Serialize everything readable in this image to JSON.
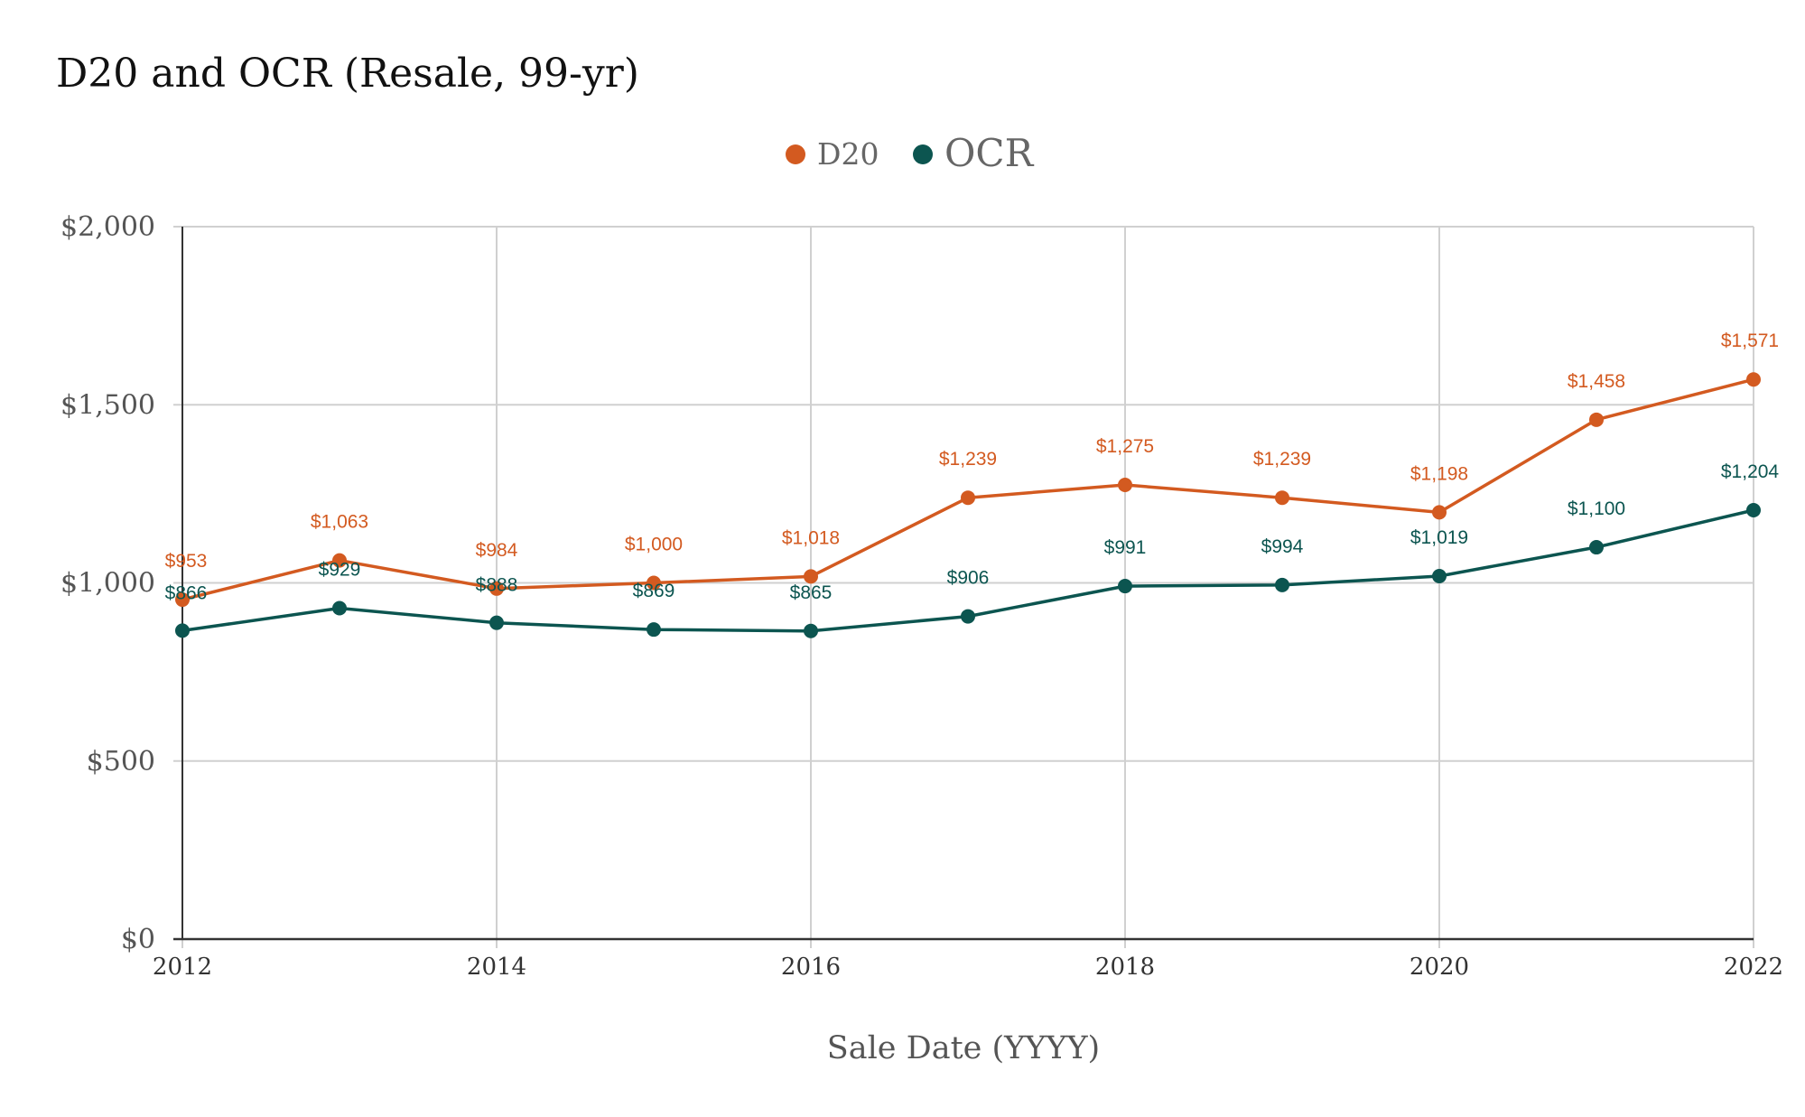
{
  "chart_data": {
    "type": "line",
    "title": "D20 and OCR (Resale, 99-yr)",
    "xlabel": "Sale Date (YYYY)",
    "ylabel": "",
    "x": [
      2012,
      2013,
      2014,
      2015,
      2016,
      2017,
      2018,
      2019,
      2020,
      2021,
      2022
    ],
    "x_tick_labels": [
      "2012",
      "2014",
      "2016",
      "2018",
      "2020",
      "2022"
    ],
    "y_tick_labels": [
      "$0",
      "$500",
      "$1,000",
      "$1,500",
      "$2,000"
    ],
    "ylim": [
      0,
      2000
    ],
    "grid": true,
    "legend_position": "top-center",
    "series": [
      {
        "name": "D20",
        "color": "#d35a20",
        "values": [
          953,
          1063,
          984,
          1000,
          1018,
          1239,
          1275,
          1239,
          1198,
          1458,
          1571
        ],
        "labels": [
          "$953",
          "$1,063",
          "$984",
          "$1,000",
          "$1,018",
          "$1,239",
          "$1,275",
          "$1,239",
          "$1,198",
          "$1,458",
          "$1,571"
        ]
      },
      {
        "name": "OCR",
        "color": "#0c5550",
        "values": [
          866,
          929,
          888,
          869,
          865,
          906,
          991,
          994,
          1019,
          1100,
          1204
        ],
        "labels": [
          "$866",
          "$929",
          "$888",
          "$869",
          "$865",
          "$906",
          "$991",
          "$994",
          "$1,019",
          "$1,100",
          "$1,204"
        ]
      }
    ]
  }
}
